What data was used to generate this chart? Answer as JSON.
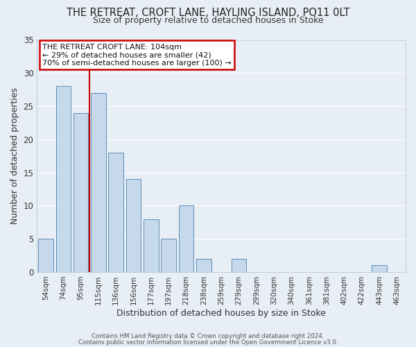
{
  "title": "THE RETREAT, CROFT LANE, HAYLING ISLAND, PO11 0LT",
  "subtitle": "Size of property relative to detached houses in Stoke",
  "xlabel": "Distribution of detached houses by size in Stoke",
  "ylabel": "Number of detached properties",
  "bar_color": "#c6d9ec",
  "bar_edge_color": "#5b8db8",
  "background_color": "#e8eef5",
  "grid_color": "#ffffff",
  "bins": [
    "54sqm",
    "74sqm",
    "95sqm",
    "115sqm",
    "136sqm",
    "156sqm",
    "177sqm",
    "197sqm",
    "218sqm",
    "238sqm",
    "259sqm",
    "279sqm",
    "299sqm",
    "320sqm",
    "340sqm",
    "361sqm",
    "381sqm",
    "402sqm",
    "422sqm",
    "443sqm",
    "463sqm"
  ],
  "values": [
    5,
    28,
    24,
    27,
    18,
    14,
    8,
    5,
    10,
    2,
    0,
    2,
    0,
    0,
    0,
    0,
    0,
    0,
    0,
    1,
    0
  ],
  "ylim": [
    0,
    35
  ],
  "yticks": [
    0,
    5,
    10,
    15,
    20,
    25,
    30,
    35
  ],
  "vline_color": "#cc0000",
  "annotation_title": "THE RETREAT CROFT LANE: 104sqm",
  "annotation_line1": "← 29% of detached houses are smaller (42)",
  "annotation_line2": "70% of semi-detached houses are larger (100) →",
  "annotation_box_color": "#ffffff",
  "annotation_box_edge": "#cc0000",
  "footer1": "Contains HM Land Registry data © Crown copyright and database right 2024.",
  "footer2": "Contains public sector information licensed under the Open Government Licence v3.0."
}
